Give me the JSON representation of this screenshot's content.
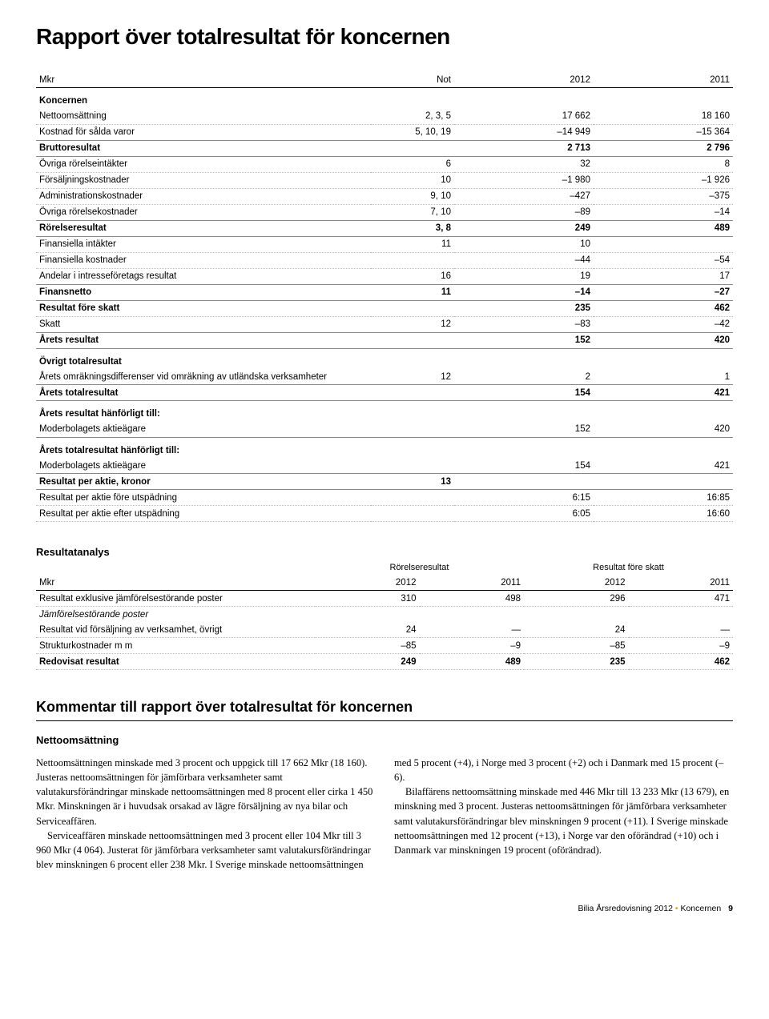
{
  "title": "Rapport över totalresultat för koncernen",
  "table1": {
    "headers": {
      "c0": "Mkr",
      "c1": "Not",
      "c2": "2012",
      "c3": "2011"
    },
    "rows": [
      {
        "type": "section",
        "bold": true,
        "c0": "Koncernen"
      },
      {
        "c0": "Nettoomsättning",
        "c1": "2, 3, 5",
        "c2": "17 662",
        "c3": "18 160"
      },
      {
        "c0": "Kostnad för sålda varor",
        "c1": "5, 10, 19",
        "c2": "–14 949",
        "c3": "–15 364",
        "sep": true
      },
      {
        "bold": true,
        "c0": "Bruttoresultat",
        "c2": "2 713",
        "c3": "2 796",
        "groupend": true
      },
      {
        "c0": "Övriga rörelseintäkter",
        "c1": "6",
        "c2": "32",
        "c3": "8"
      },
      {
        "c0": "Försäljningskostnader",
        "c1": "10",
        "c2": "–1 980",
        "c3": "–1 926"
      },
      {
        "c0": "Administrationskostnader",
        "c1": "9, 10",
        "c2": "–427",
        "c3": "–375"
      },
      {
        "c0": "Övriga rörelsekostnader",
        "c1": "7, 10",
        "c2": "–89",
        "c3": "–14",
        "sep": true
      },
      {
        "bold": true,
        "c0": "Rörelseresultat",
        "c1": "3, 8",
        "c2": "249",
        "c3": "489",
        "groupend": true
      },
      {
        "c0": "Finansiella intäkter",
        "c1": "11",
        "c2": "10"
      },
      {
        "c0": "Finansiella kostnader",
        "c2": "–44",
        "c3": "–54"
      },
      {
        "c0": "Andelar i intresseföretags resultat",
        "c1": "16",
        "c2": "19",
        "c3": "17",
        "sep": true
      },
      {
        "bold": true,
        "c0": "Finansnetto",
        "c1": "11",
        "c2": "–14",
        "c3": "–27",
        "groupend": true
      },
      {
        "bold": true,
        "c0": "Resultat före skatt",
        "c2": "235",
        "c3": "462"
      },
      {
        "c0": "Skatt",
        "c1": "12",
        "c2": "–83",
        "c3": "–42",
        "sep": true
      },
      {
        "bold": true,
        "c0": "Årets resultat",
        "c2": "152",
        "c3": "420",
        "groupend": true
      },
      {
        "type": "section",
        "bold": true,
        "c0": "Övrigt totalresultat"
      },
      {
        "c0": "Årets omräkningsdifferenser vid omräkning av utländska verksamheter",
        "c1": "12",
        "c2": "2",
        "c3": "1",
        "sep": true
      },
      {
        "bold": true,
        "c0": "Årets totalresultat",
        "c2": "154",
        "c3": "421",
        "groupend": true
      },
      {
        "type": "section",
        "bold": true,
        "c0": "Årets resultat hänförligt till:"
      },
      {
        "c0": "Moderbolagets aktieägare",
        "c2": "152",
        "c3": "420",
        "groupend": true
      },
      {
        "type": "section",
        "bold": true,
        "c0": "Årets totalresultat hänförligt till:"
      },
      {
        "c0": "Moderbolagets aktieägare",
        "c2": "154",
        "c3": "421",
        "groupend": true
      },
      {
        "bold": true,
        "c0": "Resultat per aktie, kronor",
        "c1": "13",
        "groupend": true
      },
      {
        "c0": "Resultat per aktie före utspädning",
        "c2": "6:15",
        "c3": "16:85"
      },
      {
        "c0": "Resultat per aktie efter utspädning",
        "c2": "6:05",
        "c3": "16:60"
      }
    ]
  },
  "analysis": {
    "title": "Resultatanalys",
    "grouphdr": {
      "g1": "Rörelseresultat",
      "g2": "Resultat före skatt"
    },
    "headers": {
      "c0": "Mkr",
      "c1": "2012",
      "c2": "2011",
      "c3": "2012",
      "c4": "2011"
    },
    "rows": [
      {
        "c0": "Resultat exklusive jämförelsestörande poster",
        "c1": "310",
        "c2": "498",
        "c3": "296",
        "c4": "471"
      },
      {
        "italic": true,
        "c0": "Jämförelsestörande poster"
      },
      {
        "c0": "Resultat vid försäljning av verksamhet, övrigt",
        "c1": "24",
        "c2": "—",
        "c3": "24",
        "c4": "—"
      },
      {
        "c0": "Strukturkostnader m m",
        "c1": "–85",
        "c2": "–9",
        "c3": "–85",
        "c4": "–9",
        "sep": true
      },
      {
        "bold": true,
        "c0": "Redovisat resultat",
        "c1": "249",
        "c2": "489",
        "c3": "235",
        "c4": "462"
      }
    ]
  },
  "commentary": {
    "heading": "Kommentar till rapport över totalresultat för koncernen",
    "subheading": "Nettoomsättning",
    "p1": "Nettoomsättningen minskade med 3 procent och uppgick till 17 662 Mkr (18 160). Justeras nettoomsättningen för jämförbara verksamheter samt valutakursförändringar minskade nettoomsättningen med 8 procent eller cirka 1 450 Mkr. Minskningen är i huvudsak orsakad av lägre försäljning av nya bilar och Serviceaffären.",
    "p2": "Serviceaffären minskade nettoomsättningen med 3 procent eller 104 Mkr till 3 960 Mkr (4 064). Justerat för jämförbara verksamheter samt valutakursförändringar blev minskningen 6 procent eller 238 Mkr. I Sverige minskade nettoomsättningen med 5 procent (+4), i Norge med 3 procent (+2) och i Danmark med 15 procent (–6).",
    "p3": "Bilaffärens nettoomsättning minskade med 446 Mkr till 13 233 Mkr (13 679), en minskning med 3 procent. Justeras nettoomsättningen för jämförbara verksamheter samt valutakursförändringar blev minskningen 9 procent (+11). I Sverige minskade nettoomsättningen med 12 procent (+13), i Norge var den oförändrad (+10) och i Danmark var minskningen 19 procent (oförändrad)."
  },
  "footer": {
    "text": "Bilia Årsredovisning 2012",
    "section": "Koncernen",
    "page": "9"
  }
}
